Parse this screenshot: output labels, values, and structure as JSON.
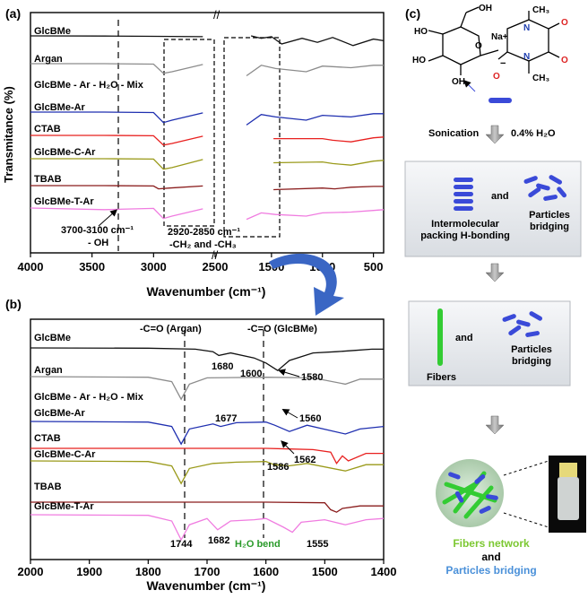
{
  "panels": {
    "a": "(a)",
    "b": "(b)",
    "c": "(c)"
  },
  "colors": {
    "GlcBMe": "#111111",
    "Argan": "#8c8c8c",
    "GlcBMe - Ar - H2O - Mix": "#1a1a1a",
    "GlcBMe-Ar": "#1f2fb0",
    "CTAB": "#e8201f",
    "GlcBMe-C-Ar": "#9a9a1a",
    "TBAB": "#8a1c1c",
    "GlcBMe-T-Ar": "#f07ce0",
    "fibers": "#33cc33",
    "particles": "#3a4ad8",
    "arrow": "#3a66c4",
    "network_text": "#7cc832",
    "bridging_text": "#4a90d9"
  },
  "chart_data": [
    {
      "type": "line",
      "panel": "(a)",
      "xlabel": "Wavenumber (cm⁻¹)",
      "ylabel": "Transmitance (%)",
      "xlim": [
        4000,
        400
      ],
      "x_axis_break": true,
      "xticks": [
        "4000",
        "3500",
        "3000",
        "2500",
        "1500",
        "1000",
        "500"
      ],
      "series": [
        {
          "name": "GlcBMe",
          "x": [
            4000,
            3400,
            3000,
            2600,
            1700,
            1600,
            1500,
            1400,
            1200,
            1050,
            900,
            700,
            500,
            400
          ],
          "y": [
            0,
            0.2,
            0.5,
            1,
            0,
            3,
            1,
            10,
            3,
            8,
            2,
            12,
            4,
            6
          ]
        },
        {
          "name": "Argan",
          "x": [
            4000,
            3400,
            3000,
            2920,
            2850,
            2600,
            1745,
            1600,
            1460,
            1160,
            1000,
            720,
            500,
            400
          ],
          "y": [
            0,
            0,
            0.5,
            12,
            10,
            1,
            15,
            2,
            6,
            10,
            3,
            5,
            2,
            2
          ]
        },
        {
          "name": "GlcBMe - Ar - H2O - Mix",
          "x": [
            4000,
            3400,
            2600,
            1700,
            500,
            400
          ],
          "y": [
            0,
            0,
            0,
            0,
            0,
            0
          ]
        },
        {
          "name": "GlcBMe-Ar",
          "x": [
            4000,
            3400,
            3000,
            2920,
            2850,
            2600,
            1745,
            1600,
            1460,
            1160,
            1000,
            720,
            500,
            400
          ],
          "y": [
            0,
            0,
            0.5,
            13,
            10,
            1,
            16,
            3,
            6,
            10,
            4,
            6,
            2,
            2
          ]
        },
        {
          "name": "CTAB",
          "x": [
            4000,
            3400,
            3000,
            2920,
            2850,
            2600,
            1480,
            1000,
            900,
            720,
            500,
            400
          ],
          "y": [
            0,
            0,
            0.5,
            12,
            10,
            1,
            4,
            4,
            6,
            8,
            3,
            2
          ]
        },
        {
          "name": "GlcBMe-C-Ar",
          "x": [
            4000,
            3400,
            3000,
            2920,
            2850,
            2600,
            1480,
            1000,
            900,
            720,
            500,
            400
          ],
          "y": [
            0,
            0,
            0.5,
            13,
            11,
            1,
            5,
            4,
            6,
            8,
            3,
            2
          ]
        },
        {
          "name": "TBAB",
          "x": [
            4000,
            3400,
            3000,
            2960,
            2870,
            2600,
            1480,
            1000,
            880,
            720,
            500,
            400
          ],
          "y": [
            0,
            0,
            0.5,
            4,
            3,
            0.5,
            5,
            3,
            4,
            2,
            1,
            1
          ]
        },
        {
          "name": "GlcBMe-T-Ar",
          "x": [
            4000,
            3400,
            3000,
            2920,
            2850,
            2600,
            1745,
            1600,
            1460,
            1160,
            1000,
            720,
            500,
            400
          ],
          "y": [
            0,
            2,
            0.5,
            13,
            10,
            1,
            14,
            6,
            8,
            10,
            6,
            5,
            3,
            2
          ]
        }
      ],
      "annotations": [
        {
          "text": "3700-3100 cm⁻¹",
          "sub": "- OH"
        },
        {
          "text": "2920-2850 cm⁻¹",
          "sub": "-CH₂ and -CH₃"
        }
      ]
    },
    {
      "type": "line",
      "panel": "(b)",
      "xlabel": "Wavenumber (cm⁻¹)",
      "xlim": [
        2000,
        1400
      ],
      "xticks": [
        "2000",
        "1900",
        "1800",
        "1700",
        "1600",
        "1500",
        "1400"
      ],
      "series": [
        {
          "name": "GlcBMe",
          "x": [
            2000,
            1800,
            1720,
            1690,
            1680,
            1660,
            1620,
            1600,
            1580,
            1560,
            1520,
            1480,
            1450,
            1420,
            1400
          ],
          "y": [
            0,
            0.2,
            1,
            3,
            6,
            4,
            8,
            12,
            18,
            10,
            4,
            3,
            2,
            1,
            1
          ]
        },
        {
          "name": "Argan",
          "x": [
            2000,
            1800,
            1760,
            1744,
            1730,
            1700,
            1600,
            1520,
            1465,
            1440,
            1400
          ],
          "y": [
            0,
            0.5,
            4,
            18,
            6,
            1,
            0.5,
            1,
            6,
            2,
            2
          ]
        },
        {
          "name": "GlcBMe - Ar - H2O - Mix",
          "x": [
            2000,
            1400
          ],
          "y": [
            0,
            0
          ]
        },
        {
          "name": "GlcBMe-Ar",
          "x": [
            2000,
            1800,
            1760,
            1744,
            1730,
            1690,
            1677,
            1650,
            1600,
            1585,
            1560,
            1530,
            1465,
            1440,
            1400
          ],
          "y": [
            0,
            0.5,
            4,
            18,
            6,
            2,
            4,
            1,
            0.5,
            3,
            8,
            3,
            10,
            6,
            4
          ]
        },
        {
          "name": "CTAB",
          "x": [
            2000,
            1600,
            1560,
            1520,
            1490,
            1480,
            1470,
            1460,
            1430,
            1400
          ],
          "y": [
            0,
            0,
            0.5,
            1,
            3,
            12,
            6,
            10,
            4,
            4
          ]
        },
        {
          "name": "GlcBMe-C-Ar",
          "x": [
            2000,
            1800,
            1760,
            1744,
            1730,
            1690,
            1650,
            1600,
            1586,
            1562,
            1530,
            1465,
            1430,
            1400
          ],
          "y": [
            0,
            0.5,
            4,
            18,
            6,
            2,
            1,
            0.5,
            3,
            4,
            2,
            8,
            3,
            3
          ]
        },
        {
          "name": "TBAB",
          "x": [
            2000,
            1600,
            1500,
            1490,
            1480,
            1470,
            1440,
            1400
          ],
          "y": [
            0,
            0,
            0.5,
            6,
            8,
            5,
            3,
            3
          ]
        },
        {
          "name": "GlcBMe-T-Ar",
          "x": [
            2000,
            1800,
            1760,
            1744,
            1730,
            1700,
            1682,
            1660,
            1620,
            1600,
            1570,
            1555,
            1540,
            1500,
            1465,
            1430,
            1400
          ],
          "y": [
            0,
            0.5,
            5,
            20,
            8,
            3,
            12,
            5,
            4,
            3,
            10,
            14,
            6,
            4,
            8,
            4,
            3
          ]
        }
      ],
      "annotations": [
        {
          "text": "-C=O (Argan)"
        },
        {
          "text": "-C=O (GlcBMe)"
        },
        {
          "text": "1680"
        },
        {
          "text": "1600"
        },
        {
          "text": "1580"
        },
        {
          "text": "1677"
        },
        {
          "text": "1560"
        },
        {
          "text": "1586"
        },
        {
          "text": "1562"
        },
        {
          "text": "1744"
        },
        {
          "text": "1682"
        },
        {
          "text": "H₂O bend"
        },
        {
          "text": "1555"
        }
      ]
    }
  ],
  "labels": {
    "series": [
      "GlcBMe",
      "Argan",
      "GlcBMe - Ar - H₂O - Mix",
      "GlcBMe-Ar",
      "CTAB",
      "GlcBMe-C-Ar",
      "TBAB",
      "GlcBMe-T-Ar"
    ],
    "series_b": [
      "GlcBMe",
      "Argan",
      "GlcBMe - Ar - H₂O - Mix",
      "GlcBMe-Ar",
      "CTAB",
      "GlcBMe-C-Ar",
      "TBAB",
      "GlcBMe-T-Ar"
    ],
    "a_xlabel": "Wavenumber (cm⁻¹)",
    "a_ylabel": "Transmitance (%)",
    "a_ticks": [
      "4000",
      "3500",
      "3000",
      "2500",
      "1500",
      "1000",
      "500"
    ],
    "a_ann1": "3700-3100 cm⁻¹",
    "a_ann1b": "- OH",
    "a_ann2": "2920-2850 cm⁻¹",
    "a_ann2b": "-CH₂ and -CH₃",
    "b_xlabel": "Wavenumber (cm⁻¹)",
    "b_ticks": [
      "2000",
      "1900",
      "1800",
      "1700",
      "1600",
      "1500",
      "1400"
    ],
    "b_co_argan": "-C=O (Argan)",
    "b_co_glc": "-C=O (GlcBMe)",
    "b_1680": "1680",
    "b_1600": "1600",
    "b_1580": "1580",
    "b_1677": "1677",
    "b_1560": "1560",
    "b_1586": "1586",
    "b_1562": "1562",
    "b_1744": "1744",
    "b_1682": "1682",
    "b_h2o": "H₂O bend",
    "b_1555": "1555"
  },
  "scheme": {
    "molecule": {
      "oh1": "OH",
      "oh2": "HO",
      "oh3": "HO",
      "oh4": "OH",
      "o_ring": "O",
      "na": "Na+",
      "minus": "−",
      "n1": "N",
      "n2": "N",
      "ch3_1": "CH₃",
      "ch3_2": "CH₃",
      "o1": "O",
      "o2": "O",
      "o3": "O"
    },
    "sonication": "Sonication",
    "water": "0.4% H₂O",
    "box1_left": "Intermolecular packing H-bonding",
    "box1_and": "and",
    "box1_right": "Particles bridging",
    "box2_fibers": "Fibers",
    "box2_and": "and",
    "box2_right": "Particles bridging",
    "final_network": "Fibers network",
    "final_and": "and",
    "final_bridging": "Particles bridging"
  }
}
